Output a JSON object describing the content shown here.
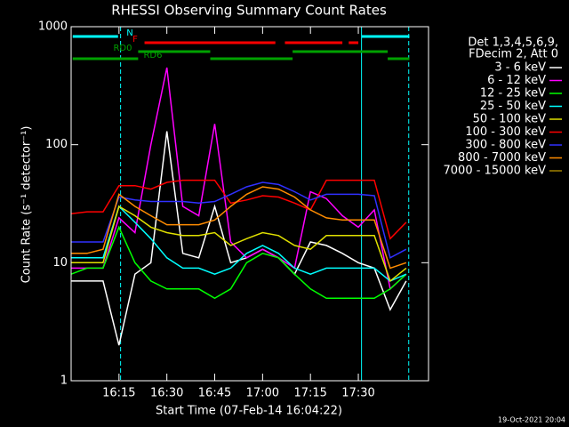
{
  "chart_data": {
    "type": "line",
    "title": "RHESSI Observing Summary Count Rates",
    "xlabel": "Start Time (07-Feb-14 16:04:22)",
    "ylabel": "Count Rate (s⁻¹ detector⁻¹)",
    "legend_title": [
      "Det 1,3,4,5,6,9,",
      "FDecim 2, Att 0"
    ],
    "footer": "19-Oct-2021 20:04",
    "log_y": true,
    "xlim": [
      0,
      112
    ],
    "xticks": [
      {
        "value": 15,
        "label": "16:15"
      },
      {
        "value": 30,
        "label": "16:30"
      },
      {
        "value": 45,
        "label": "16:45"
      },
      {
        "value": 60,
        "label": "17:00"
      },
      {
        "value": 75,
        "label": "17:15"
      },
      {
        "value": 90,
        "label": "17:30"
      }
    ],
    "ylim": [
      1,
      1000
    ],
    "yticks": [
      1,
      10,
      100,
      1000
    ],
    "x": [
      0,
      5,
      10,
      15,
      20,
      25,
      30,
      35,
      40,
      45,
      50,
      55,
      60,
      65,
      70,
      75,
      80,
      85,
      90,
      95,
      100,
      105
    ],
    "series": [
      {
        "name": "3 - 6 keV",
        "color": "#ffffff",
        "values": [
          7,
          7,
          7,
          2,
          8,
          10,
          130,
          12,
          11,
          30,
          10,
          11,
          13,
          11,
          8,
          15,
          14,
          12,
          10,
          9,
          4,
          7
        ]
      },
      {
        "name": "6 - 12 keV",
        "color": "#ff00ff",
        "values": [
          9,
          9,
          9,
          24,
          18,
          100,
          450,
          30,
          25,
          150,
          15,
          11,
          13,
          11,
          9,
          40,
          35,
          25,
          20,
          28,
          6,
          8
        ]
      },
      {
        "name": "12 - 25 keV",
        "color": "#00ff00",
        "values": [
          8,
          9,
          9,
          20,
          10,
          7,
          6,
          6,
          6,
          5,
          6,
          10,
          12,
          11,
          8,
          6,
          5,
          5,
          5,
          5,
          6,
          8
        ]
      },
      {
        "name": "25 - 50 keV",
        "color": "#00ffff",
        "values": [
          11,
          11,
          11,
          30,
          22,
          16,
          11,
          9,
          9,
          8,
          9,
          12,
          14,
          12,
          9,
          8,
          9,
          9,
          9,
          9,
          7,
          8
        ]
      },
      {
        "name": "50 - 100 keV",
        "color": "#e0e000",
        "values": [
          10,
          10,
          10,
          30,
          25,
          20,
          18,
          17,
          17,
          18,
          14,
          16,
          18,
          17,
          14,
          13,
          17,
          17,
          17,
          17,
          7,
          9
        ]
      },
      {
        "name": "100 - 300 keV",
        "color": "#ff0000",
        "values": [
          26,
          27,
          27,
          45,
          45,
          42,
          48,
          50,
          50,
          50,
          32,
          34,
          37,
          36,
          32,
          28,
          50,
          50,
          50,
          50,
          16,
          22
        ]
      },
      {
        "name": "300 - 800 keV",
        "color": "#3030ff",
        "values": [
          15,
          15,
          15,
          36,
          34,
          33,
          33,
          33,
          32,
          33,
          38,
          44,
          48,
          46,
          40,
          34,
          38,
          38,
          38,
          37,
          11,
          13
        ]
      },
      {
        "name": "800 - 7000 keV",
        "color": "#ff8c00",
        "values": [
          12,
          12,
          13,
          38,
          30,
          25,
          21,
          21,
          21,
          23,
          30,
          38,
          44,
          42,
          36,
          28,
          24,
          23,
          23,
          23,
          9,
          10
        ]
      },
      {
        "name": "7000 - 15000 keV",
        "color": "#a08000",
        "values": [
          null,
          null,
          null,
          null,
          null,
          null,
          null,
          null,
          null,
          null,
          null,
          null,
          null,
          null,
          null,
          null,
          null,
          null,
          null,
          null,
          null,
          null
        ]
      }
    ],
    "flags": [
      {
        "name": "N",
        "color": "#00ffff",
        "segments": [
          [
            0.5,
            14.7
          ],
          [
            91,
            106
          ]
        ]
      },
      {
        "name": "F",
        "color": "#ff0000",
        "segments": [
          [
            23,
            64
          ],
          [
            67,
            85
          ],
          [
            87,
            90
          ]
        ]
      },
      {
        "name": "RD0",
        "color": "#00a000",
        "segments": [
          [
            21,
            43.6
          ],
          [
            69.4,
            99.2
          ]
        ]
      },
      {
        "name": "RD6",
        "color": "#00a000",
        "segments": [
          [
            0.5,
            21
          ],
          [
            43.6,
            69.4
          ],
          [
            99.2,
            106
          ]
        ]
      }
    ],
    "markers": [
      {
        "value": 0,
        "dashed": false
      },
      {
        "value": 15.5,
        "dashed": true
      },
      {
        "value": 91,
        "dashed": false
      },
      {
        "value": 105.8,
        "dashed": true
      }
    ]
  }
}
